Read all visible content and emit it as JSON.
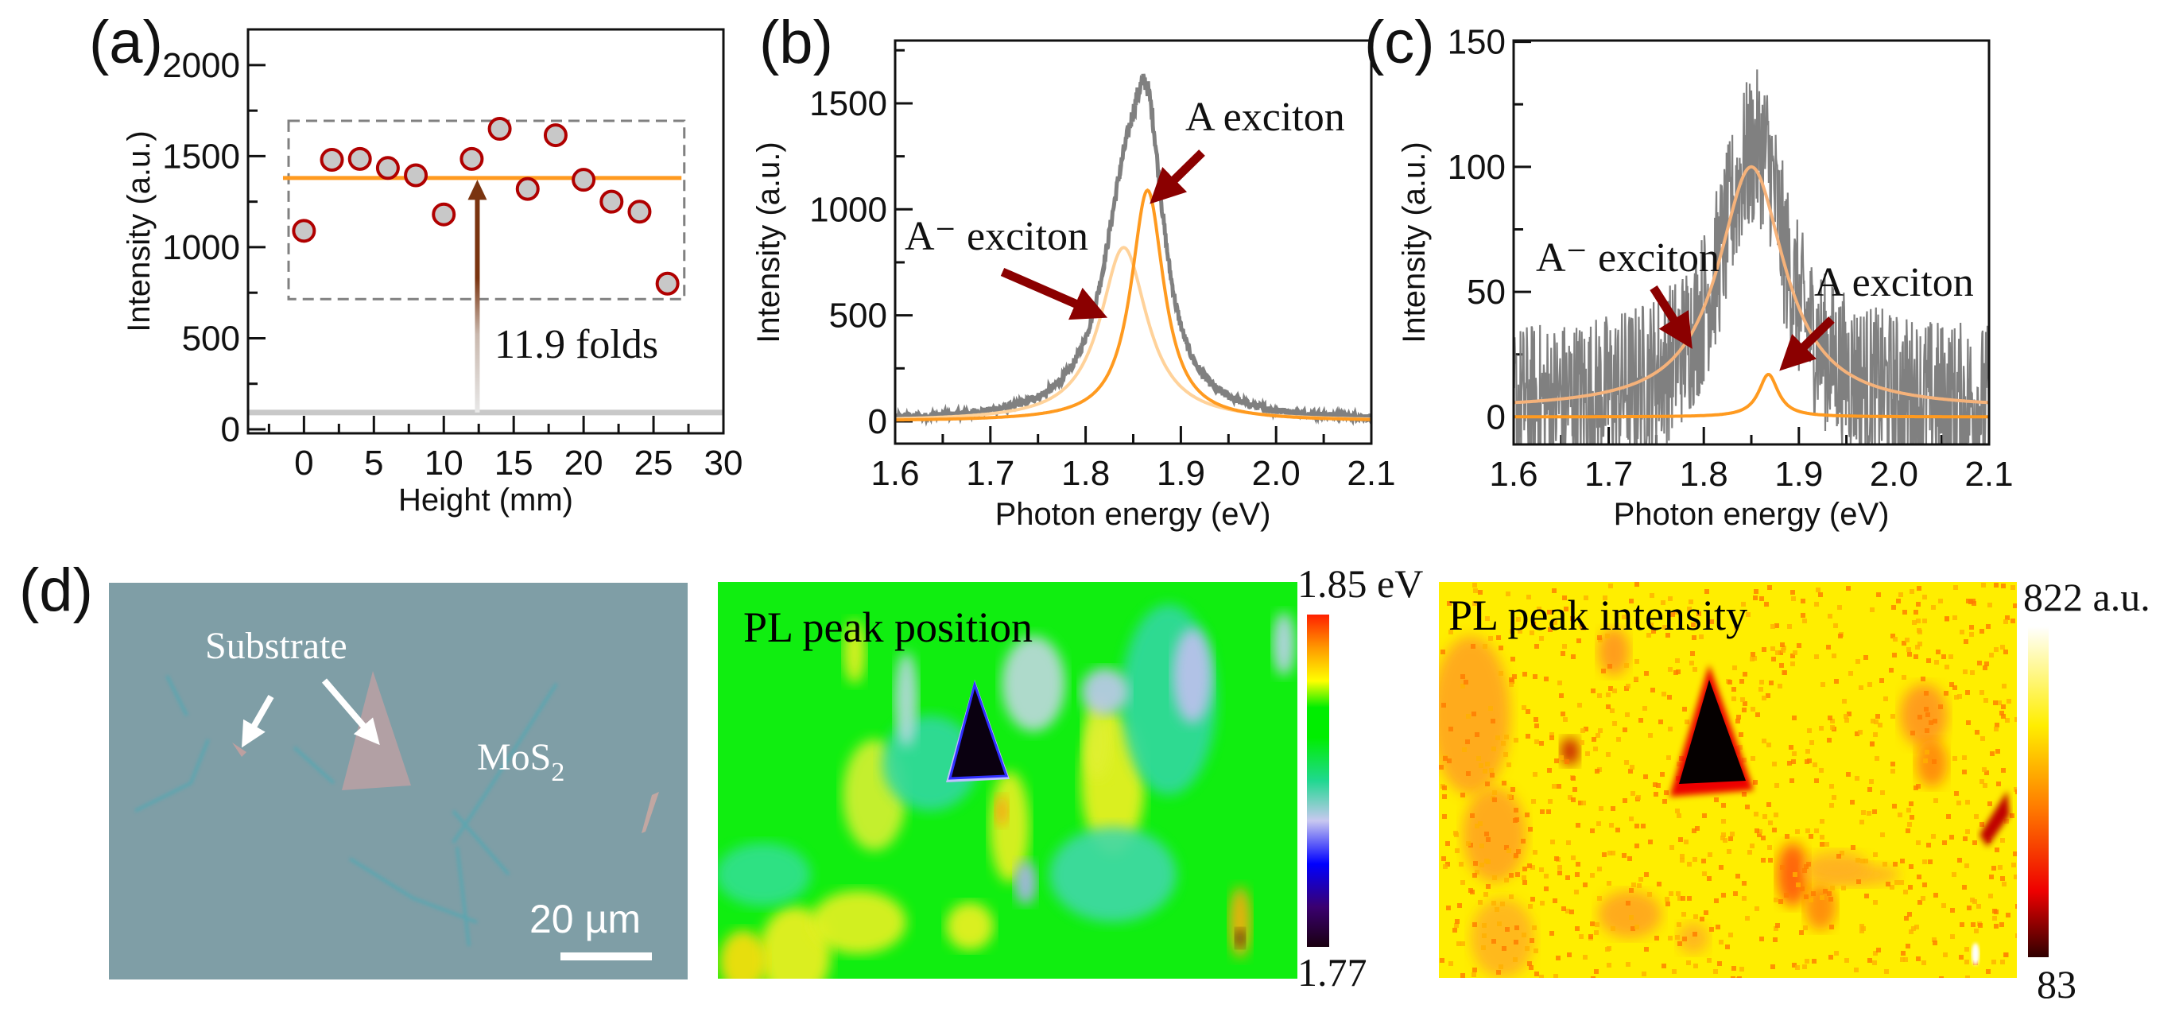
{
  "chart_data": [
    {
      "panel": "(a)",
      "type": "scatter",
      "xlabel": "Height (mm)",
      "ylabel": "Intensity (a.u.)",
      "xlim": [
        -4,
        30
      ],
      "ylim": [
        -22,
        2196
      ],
      "xticks": [
        "0",
        "5",
        "10",
        "15",
        "20",
        "25",
        "30"
      ],
      "yticks": [
        "0",
        "500",
        "1000",
        "1500",
        "2000"
      ],
      "x": [
        0,
        2,
        4,
        6,
        8,
        10,
        12,
        14,
        16,
        18,
        20,
        22,
        24,
        26
      ],
      "y": [
        1090,
        1480,
        1485,
        1435,
        1395,
        1180,
        1485,
        1650,
        1320,
        1615,
        1370,
        1250,
        1195,
        800
      ],
      "mean_line": 1380,
      "baseline_level": 92,
      "highlight_box": {
        "x": [
          -1.1,
          27.2
        ],
        "y": [
          715,
          1694
        ]
      },
      "annotation": "11.9 folds",
      "colors": {
        "marker_fill": "#c8c8c8",
        "marker_edge": "#b00000",
        "mean": "#ff9a1f",
        "arrow": "#7a3410",
        "baseline": "#c8c8c8",
        "box": "#808080"
      }
    },
    {
      "panel": "(b)",
      "type": "line",
      "xlabel": "Photon energy (eV)",
      "ylabel": "Intensity (a.u.)",
      "xlim": [
        1.6,
        2.1
      ],
      "ylim": [
        -105,
        1796
      ],
      "xticks": [
        "1.6",
        "1.7",
        "1.8",
        "1.9",
        "2.0",
        "2.1"
      ],
      "yticks": [
        "0",
        "500",
        "1000",
        "1500"
      ],
      "series": [
        {
          "name": "Measured",
          "color": "#808080",
          "baseline": 0,
          "noise": 30
        },
        {
          "name": "A⁻ exciton fit",
          "color": "#ffd29a",
          "center": 1.84,
          "amplitude": 820,
          "fwhm": 0.06
        },
        {
          "name": "A exciton fit",
          "color": "#ff9a1f",
          "center": 1.865,
          "amplitude": 1090,
          "fwhm": 0.042
        }
      ],
      "annotations": [
        "A exciton",
        "A⁻ exciton"
      ]
    },
    {
      "panel": "(c)",
      "type": "line",
      "xlabel": "Photon energy (eV)",
      "ylabel": "Intensity (a.u.)",
      "xlim": [
        1.6,
        2.1
      ],
      "ylim": [
        -11,
        150.5
      ],
      "xticks": [
        "1.6",
        "1.7",
        "1.8",
        "1.9",
        "2.0",
        "2.1"
      ],
      "yticks": [
        "0",
        "50",
        "100",
        "150"
      ],
      "series": [
        {
          "name": "Measured",
          "color": "#808080",
          "baseline": 3,
          "noise": 32
        },
        {
          "name": "A⁻ exciton fit",
          "color": "#f5b27a",
          "center": 1.85,
          "amplitude": 97,
          "fwhm": 0.085,
          "offset": 3
        },
        {
          "name": "A exciton fit",
          "color": "#ff9a1f",
          "center": 1.868,
          "amplitude": 17,
          "fwhm": 0.025,
          "offset": 0
        }
      ],
      "annotations": [
        "A⁻ exciton",
        "A exciton"
      ]
    }
  ],
  "panel_d": {
    "label": "(d)",
    "optical": {
      "substrate_label": "Substrate",
      "mos2_label": "MoS",
      "mos2_sub": "2",
      "scale_label": "20 µm"
    },
    "position_map": {
      "title": "PL peak position",
      "max_label": "1.85 eV",
      "min_label": "1.77",
      "range": [
        1.77,
        1.85
      ]
    },
    "intensity_map": {
      "title": "PL peak intensity",
      "max_label": "822 a.u.",
      "min_label": "83",
      "range": [
        83,
        822
      ]
    }
  }
}
